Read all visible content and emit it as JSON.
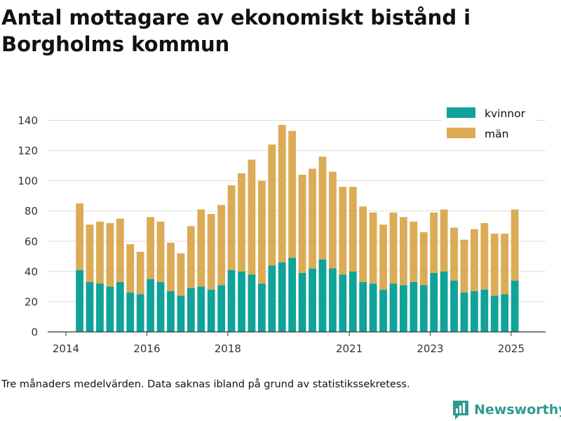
{
  "title": "Antal mottagare av ekonomiskt bistånd i Borgholms kommun",
  "footnote": "Tre månaders medelvärden. Data saknas ibland på grund av statistikssekretess.",
  "brand": {
    "name": "Newsworthy",
    "icon": "newsworthy-logo-icon"
  },
  "colors": {
    "kvinnor": "#0fa39a",
    "man": "#dcab56",
    "grid": "#dddddd",
    "axis": "#333333"
  },
  "chart_data": {
    "type": "bar",
    "stacked": true,
    "title": "Antal mottagare av ekonomiskt bistånd i Borgholms kommun",
    "xlabel": "",
    "ylabel": "",
    "ylim": [
      0,
      140
    ],
    "yticks": [
      0,
      20,
      40,
      60,
      80,
      100,
      120,
      140
    ],
    "xticks": [
      {
        "label": "2014",
        "value": 2014.0
      },
      {
        "label": "2016",
        "value": 2016.0
      },
      {
        "label": "2018",
        "value": 2018.0
      },
      {
        "label": "2021",
        "value": 2021.0
      },
      {
        "label": "2023",
        "value": 2023.0
      },
      {
        "label": "2025",
        "value": 2025.0
      }
    ],
    "xlim": [
      2013.55,
      2025.85
    ],
    "grid": true,
    "legend_position": "top-right",
    "x": [
      2014.34,
      2014.59,
      2014.84,
      2015.09,
      2015.34,
      2015.59,
      2015.84,
      2016.09,
      2016.34,
      2016.59,
      2016.84,
      2017.09,
      2017.34,
      2017.59,
      2017.84,
      2018.09,
      2018.34,
      2018.59,
      2018.84,
      2019.09,
      2019.34,
      2019.59,
      2019.84,
      2020.09,
      2020.34,
      2020.59,
      2020.84,
      2021.09,
      2021.34,
      2021.59,
      2021.84,
      2022.09,
      2022.34,
      2022.59,
      2022.84,
      2023.09,
      2023.34,
      2023.59,
      2023.84,
      2024.09,
      2024.34,
      2024.59,
      2024.84,
      2025.09
    ],
    "series": [
      {
        "name": "kvinnor",
        "color": "#0fa39a",
        "values": [
          41,
          33,
          32,
          30,
          33,
          26,
          25,
          35,
          33,
          27,
          24,
          29,
          30,
          28,
          31,
          41,
          40,
          38,
          32,
          44,
          46,
          49,
          39,
          42,
          48,
          42,
          38,
          40,
          33,
          32,
          28,
          32,
          31,
          33,
          31,
          39,
          40,
          34,
          26,
          27,
          28,
          24,
          25,
          34
        ]
      },
      {
        "name": "män",
        "color": "#dcab56",
        "values": [
          44,
          38,
          41,
          42,
          42,
          32,
          28,
          41,
          40,
          32,
          28,
          41,
          51,
          50,
          53,
          56,
          65,
          76,
          68,
          80,
          91,
          84,
          65,
          66,
          68,
          64,
          58,
          56,
          50,
          47,
          43,
          47,
          45,
          40,
          35,
          40,
          41,
          35,
          35,
          41,
          44,
          41,
          40,
          47
        ]
      }
    ]
  }
}
